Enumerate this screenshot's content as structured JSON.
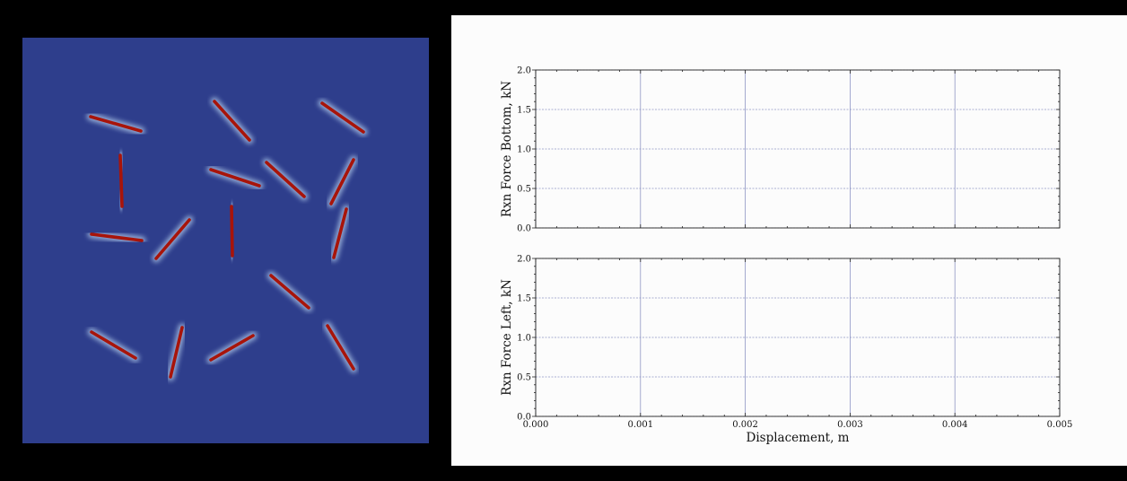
{
  "simulation": {
    "background_color": "#2e3e8c",
    "crack_color": "#a8140a",
    "glow_color": "#9fb6dc"
  },
  "chart_data": [
    {
      "type": "line",
      "ylabel": "Rxn Force Bottom, kN",
      "xlabel": "",
      "xlim": [
        0.0,
        0.005
      ],
      "ylim": [
        0.0,
        2.0
      ],
      "xticks": [
        "0.000",
        "0.001",
        "0.002",
        "0.003",
        "0.004",
        "0.005"
      ],
      "yticks": [
        "0.0",
        "0.5",
        "1.0",
        "1.5",
        "2.0"
      ],
      "grid": true,
      "series": [
        {
          "x": [],
          "y": []
        }
      ]
    },
    {
      "type": "line",
      "ylabel": "Rxn Force Left, kN",
      "xlabel": "Displacement, m",
      "xlim": [
        0.0,
        0.005
      ],
      "ylim": [
        0.0,
        2.0
      ],
      "xticks": [
        "0.000",
        "0.001",
        "0.002",
        "0.003",
        "0.004",
        "0.005"
      ],
      "yticks": [
        "0.0",
        "0.5",
        "1.0",
        "1.5",
        "2.0"
      ],
      "grid": true,
      "series": [
        {
          "x": [],
          "y": []
        }
      ]
    }
  ],
  "colors": {
    "grid": "#8e95c4",
    "axis": "#222222",
    "plot_bg": "#fcfcfc"
  }
}
